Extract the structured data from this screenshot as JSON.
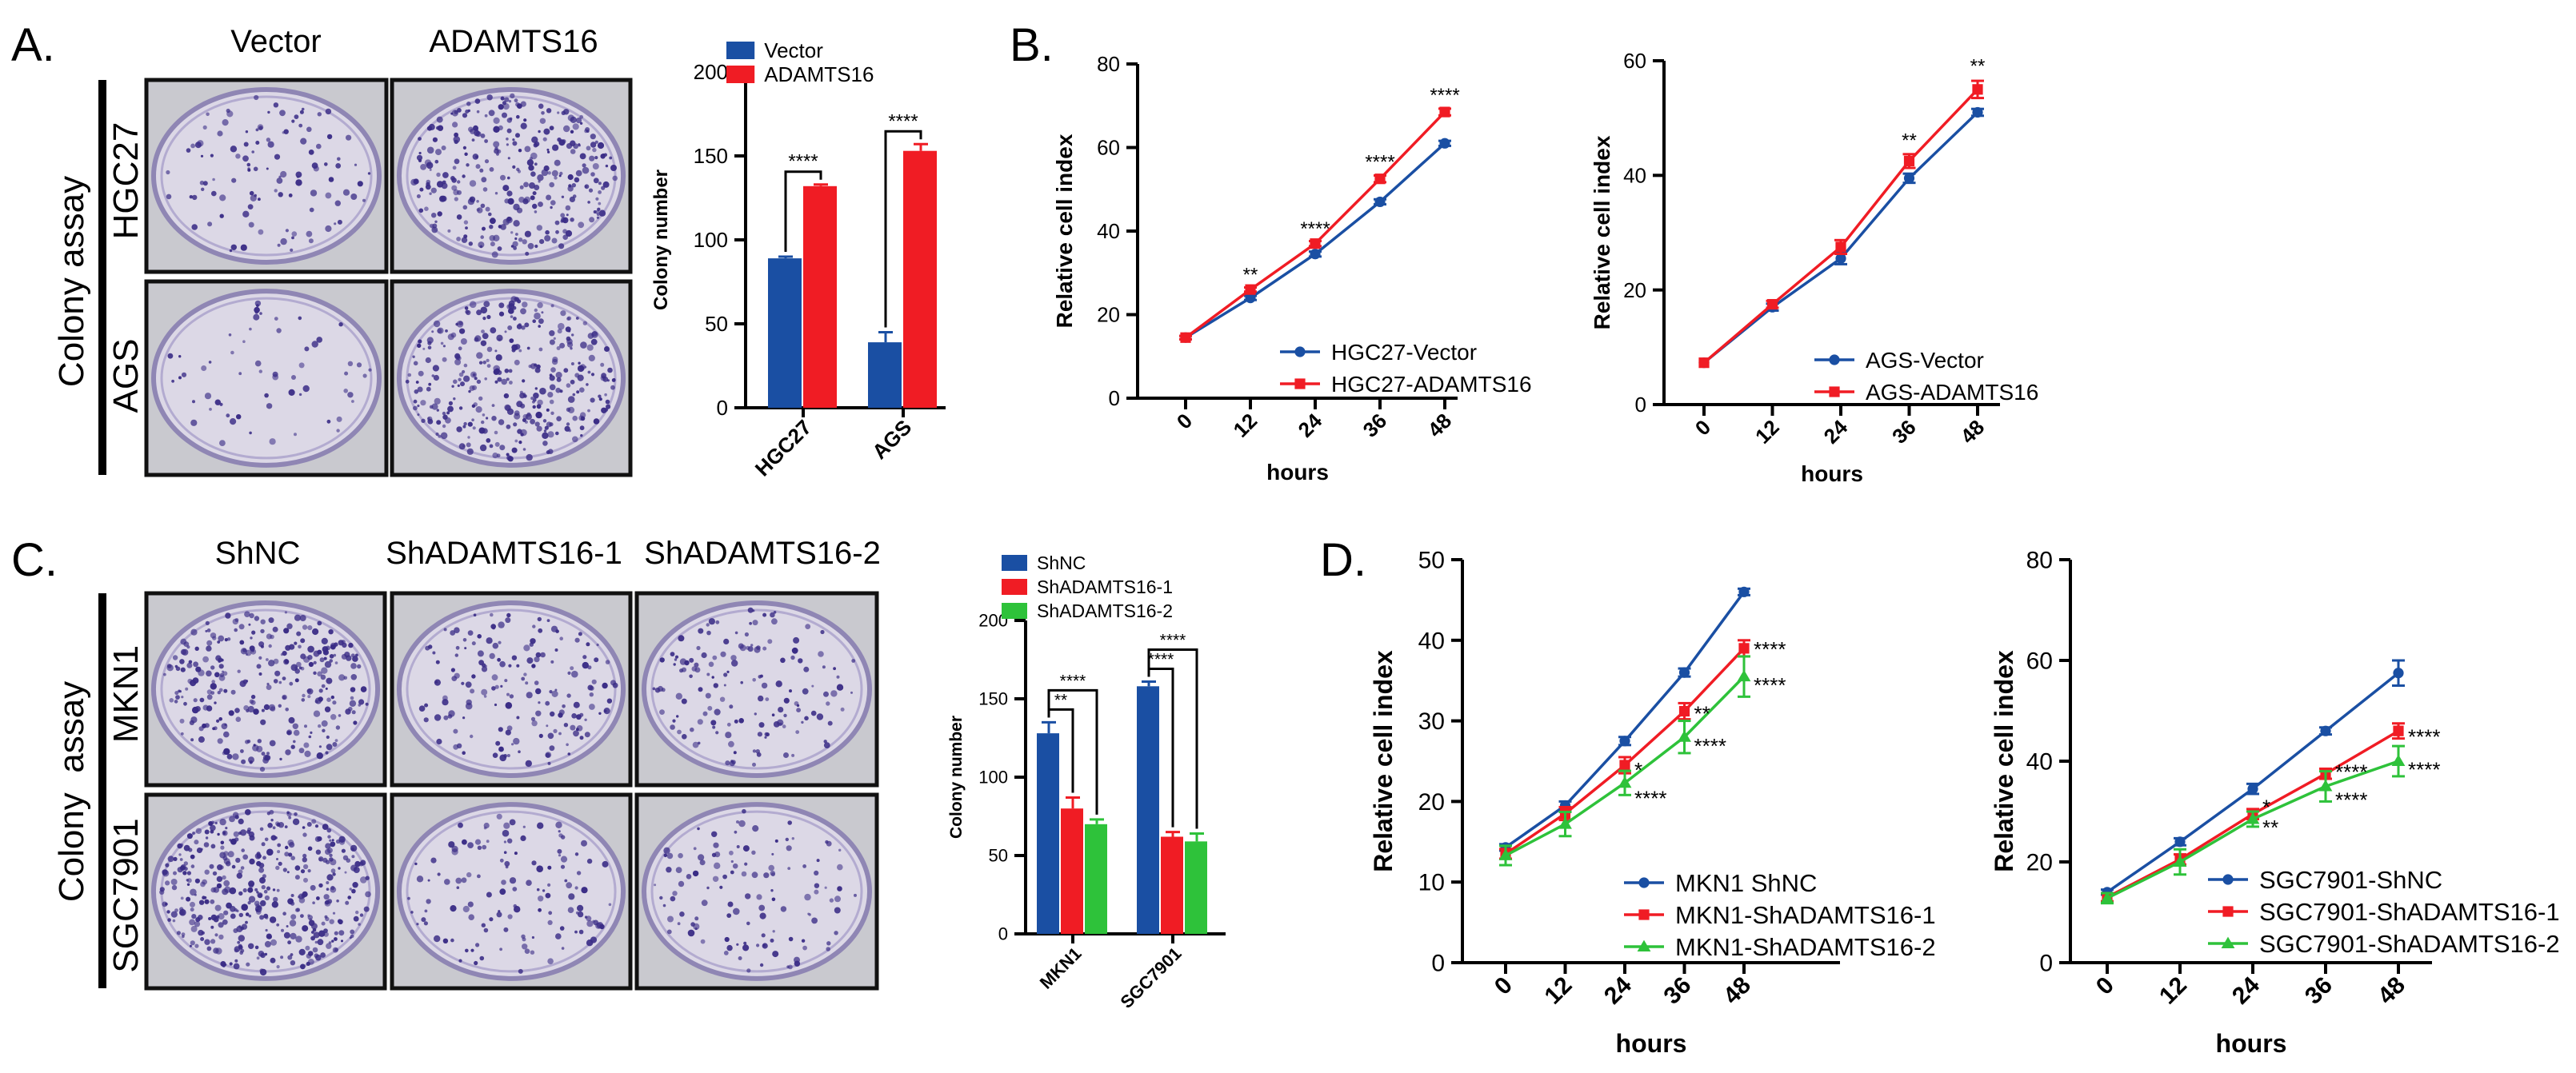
{
  "panels": {
    "A": {
      "label": "A.",
      "col_labels": [
        "Vector",
        "ADAMTS16"
      ],
      "side_label": "Colony assay",
      "row_labels": [
        "HGC27",
        "AGS"
      ]
    },
    "B": {
      "label": "B."
    },
    "C": {
      "label": "C.",
      "col_labels": [
        "ShNC",
        "ShADAMTS16-1",
        "ShADAMTS16-2"
      ],
      "side_label": "Colony  assay",
      "row_labels": [
        "MKN1",
        "SGC7901"
      ]
    },
    "D": {
      "label": "D."
    }
  },
  "colors": {
    "blue": "#1a4fa3",
    "red": "#f01c24",
    "green": "#2ec23a",
    "plate_bg": "#c9c9cf",
    "dish": "#dcd8e6",
    "dot": "#3a2c86"
  },
  "chart_data": [
    {
      "id": "A-bar",
      "type": "bar",
      "title": "",
      "ylabel": "Colony number",
      "xlabel": "",
      "ylim": [
        0,
        200
      ],
      "yticks": [
        0,
        50,
        100,
        150,
        200
      ],
      "categories": [
        "HGC27",
        "AGS"
      ],
      "series": [
        {
          "name": "Vector",
          "color": "#1a4fa3",
          "values": [
            89,
            39
          ],
          "errors": [
            1,
            6
          ]
        },
        {
          "name": "ADAMTS16",
          "color": "#f01c24",
          "values": [
            132,
            153
          ],
          "errors": [
            1,
            4
          ]
        }
      ],
      "brackets": [
        {
          "category": 0,
          "from": 0,
          "to": 1,
          "label": "****"
        },
        {
          "category": 1,
          "from": 0,
          "to": 1,
          "label": "****"
        }
      ],
      "legend": "top"
    },
    {
      "id": "B-line-1",
      "type": "line",
      "xlabel": "hours",
      "ylabel": "Relative cell index",
      "x": [
        0,
        12,
        24,
        36,
        48
      ],
      "ylim": [
        0,
        80
      ],
      "yticks": [
        0,
        20,
        40,
        60,
        80
      ],
      "series": [
        {
          "name": "HGC27-Vector",
          "color": "#1a4fa3",
          "marker": "circle",
          "values": [
            14.5,
            24,
            34.5,
            47,
            61
          ],
          "errors": [
            0.4,
            0.5,
            0.6,
            0.6,
            0.6
          ]
        },
        {
          "name": "HGC27-ADAMTS16",
          "color": "#f01c24",
          "marker": "square",
          "values": [
            14.5,
            26,
            37,
            52.5,
            68.5
          ],
          "errors": [
            0.4,
            0.5,
            0.6,
            0.8,
            0.8
          ]
        }
      ],
      "annotations": [
        {
          "x": 12,
          "y": 28,
          "text": "**"
        },
        {
          "x": 24,
          "y": 39,
          "text": "****"
        },
        {
          "x": 36,
          "y": 55,
          "text": "****"
        },
        {
          "x": 48,
          "y": 71,
          "text": "****"
        }
      ],
      "legend": "bottom-right"
    },
    {
      "id": "B-line-2",
      "type": "line",
      "xlabel": "hours",
      "ylabel": "Relative cell index",
      "x": [
        0,
        12,
        24,
        36,
        48
      ],
      "ylim": [
        0,
        60
      ],
      "yticks": [
        0,
        20,
        40,
        60
      ],
      "series": [
        {
          "name": "AGS-Vector",
          "color": "#1a4fa3",
          "marker": "circle",
          "values": [
            7.3,
            17,
            25.5,
            39.5,
            51
          ],
          "errors": [
            0.3,
            0.6,
            1,
            0.8,
            0.6
          ]
        },
        {
          "name": "AGS-ADAMTS16",
          "color": "#f01c24",
          "marker": "square",
          "values": [
            7.3,
            17.5,
            27.5,
            42.5,
            55
          ],
          "errors": [
            0.3,
            0.6,
            1.2,
            1.2,
            1.5
          ]
        }
      ],
      "annotations": [
        {
          "x": 36,
          "y": 45,
          "text": "**"
        },
        {
          "x": 48,
          "y": 58,
          "text": "**"
        }
      ],
      "legend": "bottom-right"
    },
    {
      "id": "C-bar",
      "type": "bar",
      "title": "",
      "ylabel": "Colony number",
      "xlabel": "",
      "ylim": [
        0,
        200
      ],
      "yticks": [
        0,
        50,
        100,
        150,
        200
      ],
      "categories": [
        "MKN1",
        "SGC7901"
      ],
      "series": [
        {
          "name": "ShNC",
          "color": "#1a4fa3",
          "values": [
            128,
            158
          ],
          "errors": [
            7,
            3
          ]
        },
        {
          "name": "ShADAMTS16-1",
          "color": "#f01c24",
          "values": [
            80,
            62
          ],
          "errors": [
            7,
            3
          ]
        },
        {
          "name": "ShADAMTS16-2",
          "color": "#2ec23a",
          "values": [
            70,
            59
          ],
          "errors": [
            3,
            5
          ]
        }
      ],
      "brackets": [
        {
          "category": 0,
          "from": 0,
          "to": 1,
          "label": "**"
        },
        {
          "category": 0,
          "from": 0,
          "to": 2,
          "label": "****"
        },
        {
          "category": 1,
          "from": 0,
          "to": 1,
          "label": "****"
        },
        {
          "category": 1,
          "from": 0,
          "to": 2,
          "label": "****"
        }
      ],
      "legend": "top"
    },
    {
      "id": "D-line-1",
      "type": "line",
      "xlabel": "hours",
      "ylabel": "Relative cell index",
      "x": [
        0,
        12,
        24,
        36,
        48
      ],
      "ylim": [
        0,
        50
      ],
      "yticks": [
        0,
        10,
        20,
        30,
        40,
        50
      ],
      "series": [
        {
          "name": "MKN1 ShNC",
          "color": "#1a4fa3",
          "marker": "circle",
          "values": [
            14.3,
            19.5,
            27.5,
            36,
            46
          ],
          "errors": [
            0.4,
            0.5,
            0.5,
            0.5,
            0.4
          ]
        },
        {
          "name": "MKN1-ShADAMTS16-1",
          "color": "#f01c24",
          "marker": "square",
          "values": [
            13.5,
            18.5,
            24.5,
            31.2,
            39
          ],
          "errors": [
            0.6,
            0.8,
            1,
            1,
            1
          ]
        },
        {
          "name": "MKN1-ShADAMTS16-2",
          "color": "#2ec23a",
          "marker": "triangle",
          "values": [
            13.3,
            17.2,
            22.3,
            28,
            35.5
          ],
          "errors": [
            1.2,
            1.5,
            1.5,
            2,
            2.5
          ]
        }
      ],
      "annotations": [
        {
          "x": 48,
          "y": 39,
          "text": "****",
          "side": "right"
        },
        {
          "x": 48,
          "y": 34.5,
          "text": "****",
          "side": "right"
        },
        {
          "x": 36,
          "y": 31,
          "text": "**",
          "side": "right"
        },
        {
          "x": 36,
          "y": 27,
          "text": "****",
          "side": "right"
        },
        {
          "x": 24,
          "y": 24,
          "text": "*",
          "side": "right"
        },
        {
          "x": 24,
          "y": 20.5,
          "text": "****",
          "side": "right"
        }
      ],
      "legend": "bottom-right"
    },
    {
      "id": "D-line-2",
      "type": "line",
      "xlabel": "hours",
      "ylabel": "Relative cell index",
      "x": [
        0,
        12,
        24,
        36,
        48
      ],
      "ylim": [
        0,
        80
      ],
      "yticks": [
        0,
        20,
        40,
        60,
        80
      ],
      "series": [
        {
          "name": "SGC7901-ShNC",
          "color": "#1a4fa3",
          "marker": "circle",
          "values": [
            14,
            24,
            34.5,
            46,
            57.5
          ],
          "errors": [
            0.5,
            0.7,
            1,
            0.7,
            2.5
          ]
        },
        {
          "name": "SGC7901-ShADAMTS16-1",
          "color": "#f01c24",
          "marker": "square",
          "values": [
            13,
            20.5,
            29.5,
            37.5,
            46
          ],
          "errors": [
            0.8,
            1,
            1,
            1,
            1.5
          ]
        },
        {
          "name": "SGC7901-ShADAMTS16-2",
          "color": "#2ec23a",
          "marker": "triangle",
          "values": [
            12.8,
            20,
            28.5,
            35,
            40
          ],
          "errors": [
            1,
            2.5,
            1.5,
            3,
            3
          ]
        }
      ],
      "annotations": [
        {
          "x": 48,
          "y": 45,
          "text": "****",
          "side": "right"
        },
        {
          "x": 48,
          "y": 38.5,
          "text": "****",
          "side": "right"
        },
        {
          "x": 36,
          "y": 38,
          "text": "****",
          "side": "right"
        },
        {
          "x": 36,
          "y": 32.5,
          "text": "****",
          "side": "right"
        },
        {
          "x": 24,
          "y": 31,
          "text": "*",
          "side": "right"
        },
        {
          "x": 24,
          "y": 27,
          "text": "**",
          "side": "right"
        }
      ],
      "legend": "bottom-right"
    }
  ]
}
